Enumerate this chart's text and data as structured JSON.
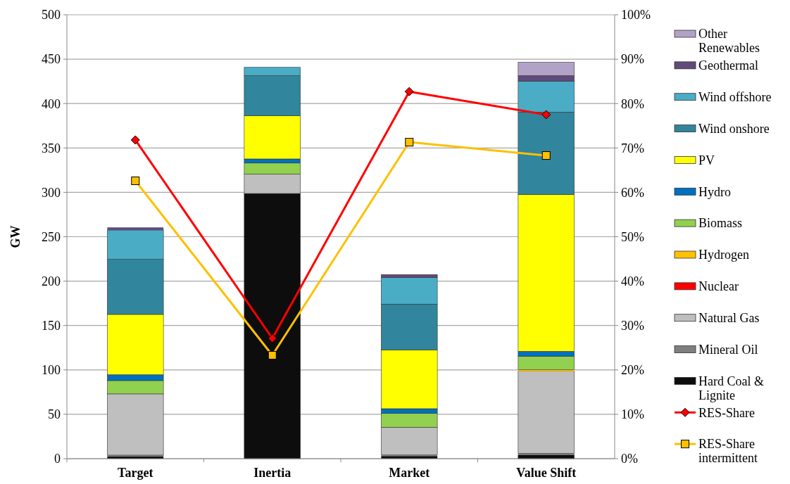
{
  "chart_data": {
    "type": "bar",
    "stacked": true,
    "ylabel": "GW",
    "categories": [
      "Target",
      "Inertia",
      "Market",
      "Value Shift"
    ],
    "ylim": [
      0,
      500
    ],
    "yticks": [
      0,
      50,
      100,
      150,
      200,
      250,
      300,
      350,
      400,
      450,
      500
    ],
    "y2lim": [
      0,
      100
    ],
    "y2ticks": [
      {
        "value": 0,
        "label": "0%"
      },
      {
        "value": 10,
        "label": "10%"
      },
      {
        "value": 20,
        "label": "20%"
      },
      {
        "value": 30,
        "label": "30%"
      },
      {
        "value": 40,
        "label": "40%"
      },
      {
        "value": 50,
        "label": "50%"
      },
      {
        "value": 60,
        "label": "60%"
      },
      {
        "value": 70,
        "label": "70%"
      },
      {
        "value": 80,
        "label": "80%"
      },
      {
        "value": 90,
        "label": "90%"
      },
      {
        "value": 100,
        "label": "100%"
      }
    ],
    "grid": "y",
    "legend": "right",
    "series": [
      {
        "name": "Hard Coal & Lignite",
        "color": "#0d0d0d",
        "values": [
          2.5,
          298.7,
          3,
          4.3
        ]
      },
      {
        "name": "Mineral Oil",
        "color": "#7f7f7f",
        "values": [
          1.5,
          0,
          1.2,
          1.8
        ]
      },
      {
        "name": "Natural Gas",
        "color": "#bfbfbf",
        "values": [
          69,
          21.7,
          31.2,
          92.4
        ]
      },
      {
        "name": "Nuclear",
        "color": "#ff0000",
        "values": [
          0,
          0,
          0,
          0
        ]
      },
      {
        "name": "Hydrogen",
        "color": "#ffc000",
        "values": [
          0,
          0,
          0,
          1.9
        ]
      },
      {
        "name": "Biomass",
        "color": "#92d050",
        "values": [
          15,
          12.6,
          15.6,
          15
        ]
      },
      {
        "name": "Hydro",
        "color": "#0070c0",
        "values": [
          6.5,
          4.6,
          5.3,
          5.5
        ]
      },
      {
        "name": "PV",
        "color": "#ffff00",
        "values": [
          68,
          48.7,
          66.3,
          176.5
        ]
      },
      {
        "name": "Wind onshore",
        "color": "#31859c",
        "values": [
          62,
          45,
          51.5,
          93
        ]
      },
      {
        "name": "Wind offshore",
        "color": "#4bacc6",
        "values": [
          33,
          9.5,
          29.8,
          34.8
        ]
      },
      {
        "name": "Geothermal",
        "color": "#604a7b",
        "values": [
          3,
          0,
          3.5,
          6.3
        ]
      },
      {
        "name": "Other Renewables",
        "color": "#b3a2c7",
        "values": [
          null,
          0,
          0,
          15
        ]
      },
      {
        "name": "RES-Share",
        "type": "line",
        "axis": "y2",
        "marker": "diamond",
        "color": "#ff0000",
        "values": [
          71.8,
          27.1,
          82.7,
          77.5
        ]
      },
      {
        "name": "RES-Share intermittent",
        "type": "line",
        "axis": "y2",
        "marker": "square",
        "color": "#ffc000",
        "values": [
          62.6,
          23.3,
          71.3,
          68.3
        ]
      }
    ]
  }
}
